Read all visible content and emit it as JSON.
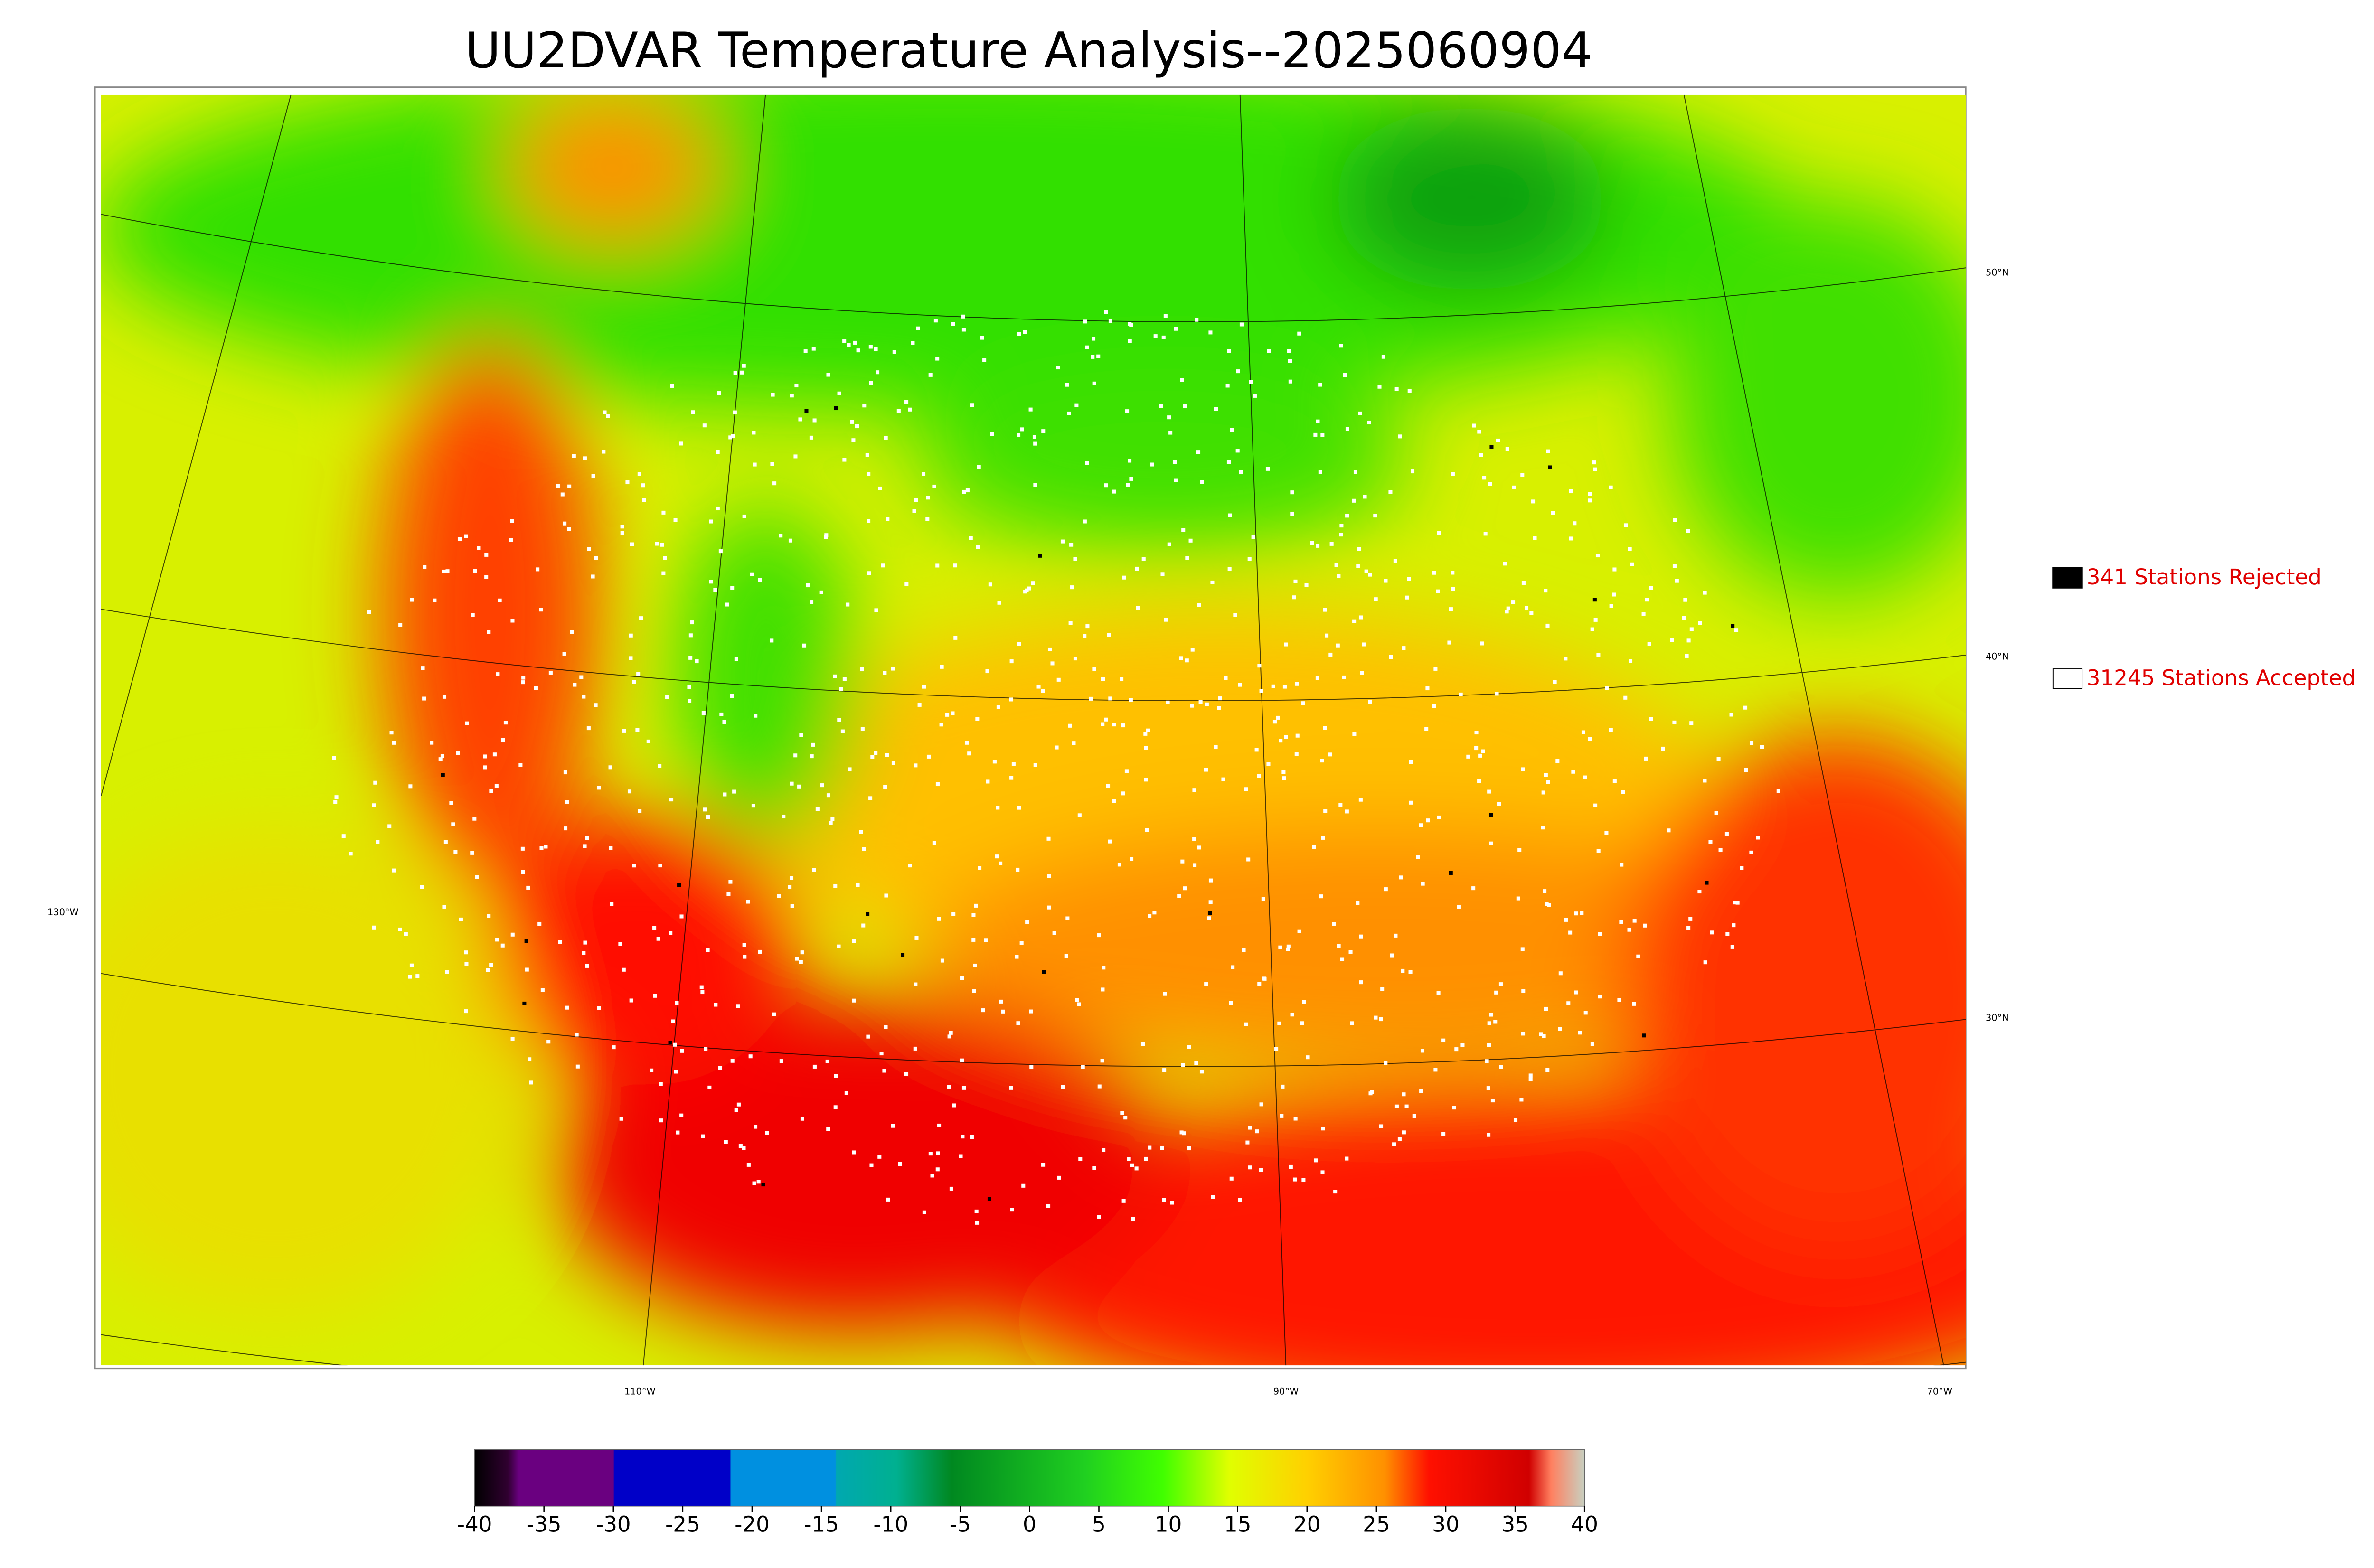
{
  "title": "UU2DVAR Temperature Analysis--2025060904",
  "legend": [
    {
      "label": "341 Stations Rejected",
      "color": "#000000"
    },
    {
      "label": "31245 Stations Accepted",
      "color": "#ffffff"
    }
  ],
  "lat_labels": [
    "50°N",
    "40°N",
    "30°N"
  ],
  "lon_labels": [
    "130°W",
    "110°W",
    "90°W",
    "70°W"
  ],
  "colorbar": {
    "range": [
      -40,
      40
    ],
    "ticks": [
      -40,
      -35,
      -30,
      -25,
      -20,
      -15,
      -10,
      -5,
      0,
      5,
      10,
      15,
      20,
      25,
      30,
      35,
      40
    ]
  }
}
